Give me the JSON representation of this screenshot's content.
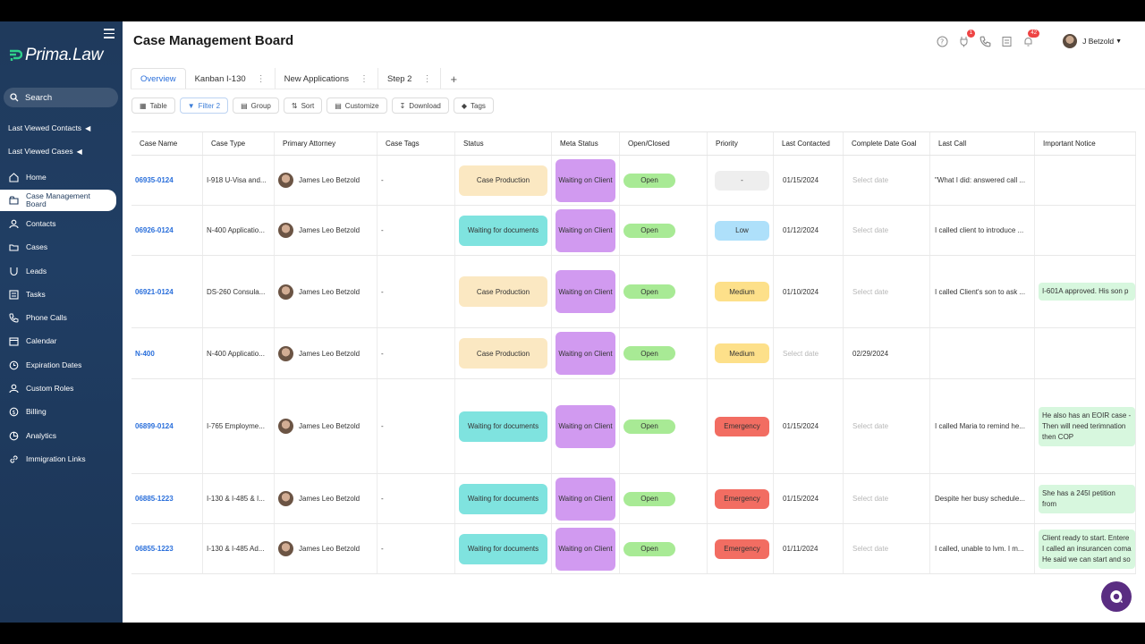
{
  "app": {
    "brand": "Prima.Law",
    "page_title": "Case Management Board"
  },
  "sidebar": {
    "search_label": "Search",
    "recent": [
      {
        "label": "Last Viewed Contacts"
      },
      {
        "label": "Last Viewed Cases"
      }
    ],
    "items": [
      {
        "label": "Home",
        "icon": "home-icon"
      },
      {
        "label": "Case Management Board",
        "icon": "board-icon",
        "active": true
      },
      {
        "label": "Contacts",
        "icon": "contacts-icon"
      },
      {
        "label": "Cases",
        "icon": "folder-icon"
      },
      {
        "label": "Leads",
        "icon": "leads-icon"
      },
      {
        "label": "Tasks",
        "icon": "tasks-icon"
      },
      {
        "label": "Phone Calls",
        "icon": "phone-icon"
      },
      {
        "label": "Calendar",
        "icon": "calendar-icon"
      },
      {
        "label": "Expiration Dates",
        "icon": "clock-icon"
      },
      {
        "label": "Custom Roles",
        "icon": "roles-icon"
      },
      {
        "label": "Billing",
        "icon": "billing-icon"
      },
      {
        "label": "Analytics",
        "icon": "analytics-icon"
      },
      {
        "label": "Immigration Links",
        "icon": "link-icon"
      }
    ]
  },
  "topbar": {
    "plug_badge": "1",
    "bell_badge": "42",
    "user_name": "J Betzold"
  },
  "tabs": [
    {
      "label": "Overview",
      "active": true
    },
    {
      "label": "Kanban I-130"
    },
    {
      "label": "New Applications"
    },
    {
      "label": "Step 2"
    }
  ],
  "toolbar": [
    {
      "label": "Table",
      "icon": "table-icon"
    },
    {
      "label": "Filter 2",
      "icon": "filter-icon",
      "active": true
    },
    {
      "label": "Group",
      "icon": "group-icon"
    },
    {
      "label": "Sort",
      "icon": "sort-icon"
    },
    {
      "label": "Customize",
      "icon": "customize-icon"
    },
    {
      "label": "Download",
      "icon": "download-icon"
    },
    {
      "label": "Tags",
      "icon": "tag-icon"
    }
  ],
  "table": {
    "columns": [
      "Case Name",
      "Case Type",
      "Primary Attorney",
      "Case Tags",
      "Status",
      "Meta Status",
      "Open/Closed",
      "Priority",
      "Last Contacted",
      "Complete Date Goal",
      "Last Call",
      "Important Notice"
    ],
    "rows": [
      {
        "case_name": "06935-0124",
        "case_type": "I-918 U-Visa and...",
        "attorney": "James Leo Betzold",
        "tags": "-",
        "status": "Case Production",
        "meta": "Waiting on Client",
        "open": "Open",
        "priority": "-",
        "last_contacted": "01/15/2024",
        "goal": "Select date",
        "last_call": "\"What I did: answered call ...",
        "notice": ""
      },
      {
        "case_name": "06926-0124",
        "case_type": "N-400 Applicatio...",
        "attorney": "James Leo Betzold",
        "tags": "-",
        "status": "Waiting for documents",
        "meta": "Waiting on Client",
        "open": "Open",
        "priority": "Low",
        "last_contacted": "01/12/2024",
        "goal": "Select date",
        "last_call": "I called client to introduce ...",
        "notice": ""
      },
      {
        "case_name": "06921-0124",
        "case_type": "DS-260 Consula...",
        "attorney": "James Leo Betzold",
        "tags": "-",
        "status": "Case Production",
        "meta": "Waiting on Client",
        "open": "Open",
        "priority": "Medium",
        "last_contacted": "01/10/2024",
        "goal": "Select date",
        "last_call": "I called Client's son to ask ...",
        "notice": "I-601A approved.  His son p"
      },
      {
        "case_name": "N-400",
        "case_type": "N-400 Applicatio...",
        "attorney": "James Leo Betzold",
        "tags": "-",
        "status": "Case Production",
        "meta": "Waiting on Client",
        "open": "Open",
        "priority": "Medium",
        "last_contacted": "Select date",
        "goal": "02/29/2024",
        "last_call": "",
        "notice": ""
      },
      {
        "case_name": "06899-0124",
        "case_type": "I-765 Employme...",
        "attorney": "James Leo Betzold",
        "tags": "-",
        "status": "Waiting for documents",
        "meta": "Waiting on Client",
        "open": "Open",
        "priority": "Emergency",
        "last_contacted": "01/15/2024",
        "goal": "Select date",
        "last_call": "I called Maria to remind he...",
        "notice": "He also has an EOIR case - Then will need terimnation then COP"
      },
      {
        "case_name": "06885-1223",
        "case_type": "I-130 & I-485 & I...",
        "attorney": "James Leo Betzold",
        "tags": "-",
        "status": "Waiting for documents",
        "meta": "Waiting on Client",
        "open": "Open",
        "priority": "Emergency",
        "last_contacted": "01/15/2024",
        "goal": "Select date",
        "last_call": "Despite her busy schedule...",
        "notice": "She has a 245I petition from"
      },
      {
        "case_name": "06855-1223",
        "case_type": "I-130 & I-485 Ad...",
        "attorney": "James Leo Betzold",
        "tags": "-",
        "status": "Waiting for documents",
        "meta": "Waiting on Client",
        "open": "Open",
        "priority": "Emergency",
        "last_contacted": "01/11/2024",
        "goal": "Select date",
        "last_call": "I called, unable to lvm. I m...",
        "notice": "Client ready to start.  Entere I called an insurancen coma He said we can start and so"
      }
    ]
  },
  "colors": {
    "sidebar": "#1f3a5c",
    "link": "#2a6fdb",
    "status_production": "#fbe8c2",
    "status_waiting": "#7fe3df",
    "meta": "#d19af0",
    "open": "#a8ea95",
    "priority_none": "#eeeeee",
    "priority_low": "#aee0fa",
    "priority_medium": "#fde08a",
    "priority_emergency": "#f26d62",
    "notice": "#d7f7de"
  }
}
